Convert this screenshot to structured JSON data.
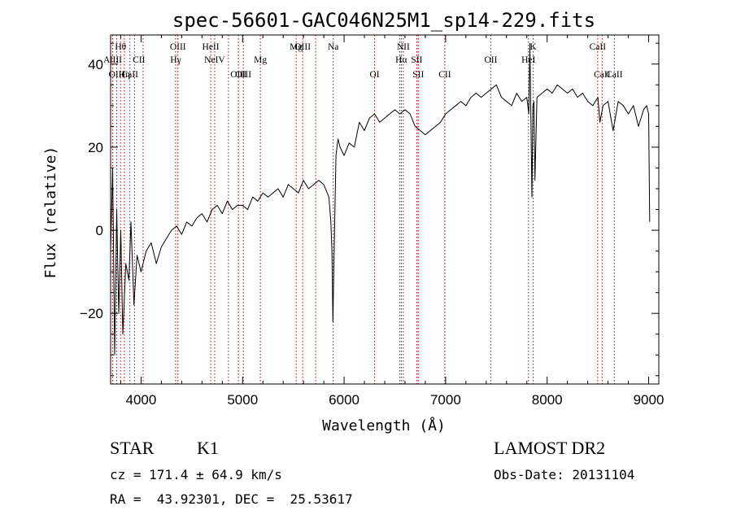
{
  "chart_data": {
    "type": "line",
    "title": "spec-56601-GAC046N25M1_sp14-229.fits",
    "xlabel": "Wavelength (Å)",
    "ylabel": "Flux (relative)",
    "xlim": [
      3700,
      9100
    ],
    "ylim": [
      -37,
      47
    ],
    "xticks": [
      4000,
      5000,
      6000,
      7000,
      8000,
      9000
    ],
    "yticks": [
      -20,
      0,
      20,
      40
    ],
    "xtick_labels": [
      "4000",
      "5000",
      "6000",
      "7000",
      "8000",
      "9000"
    ],
    "ytick_labels": [
      "−20",
      "0",
      "20",
      "40"
    ],
    "grid": false,
    "series": [
      {
        "x": [
          3700,
          3720,
          3740,
          3760,
          3780,
          3800,
          3820,
          3850,
          3880,
          3900,
          3930,
          3960,
          4000,
          4050,
          4100,
          4150,
          4200,
          4250,
          4300,
          4350,
          4400,
          4450,
          4500,
          4550,
          4600,
          4650,
          4700,
          4750,
          4800,
          4850,
          4900,
          4950,
          5000,
          5050,
          5100,
          5150,
          5200,
          5250,
          5300,
          5350,
          5400,
          5450,
          5500,
          5550,
          5600,
          5650,
          5700,
          5750,
          5800,
          5850,
          5870,
          5880,
          5890,
          5900,
          5910,
          5920,
          5940,
          5960,
          6000,
          6050,
          6100,
          6150,
          6200,
          6250,
          6300,
          6350,
          6400,
          6450,
          6500,
          6550,
          6600,
          6650,
          6700,
          6750,
          6800,
          6850,
          6900,
          6950,
          7000,
          7050,
          7100,
          7150,
          7200,
          7250,
          7300,
          7350,
          7400,
          7450,
          7500,
          7550,
          7600,
          7650,
          7700,
          7750,
          7800,
          7820,
          7830,
          7850,
          7860,
          7870,
          7880,
          7900,
          7950,
          8000,
          8050,
          8100,
          8150,
          8200,
          8250,
          8300,
          8350,
          8400,
          8450,
          8500,
          8520,
          8550,
          8600,
          8650,
          8700,
          8750,
          8800,
          8850,
          8900,
          8950,
          8980,
          9000,
          9010
        ],
        "y": [
          -5,
          15,
          -30,
          5,
          -20,
          0,
          -25,
          -8,
          -12,
          2,
          -18,
          -6,
          -10,
          -5,
          -3,
          -8,
          -4,
          -2,
          0,
          1,
          -1,
          2,
          1,
          3,
          4,
          2,
          5,
          6,
          4,
          7,
          5,
          6,
          6,
          5,
          8,
          7,
          9,
          8,
          9,
          10,
          8,
          11,
          10,
          9,
          12,
          10,
          11,
          12,
          11,
          8,
          2,
          -5,
          -22,
          -8,
          5,
          18,
          22,
          20,
          18,
          21,
          20,
          26,
          24,
          27,
          28,
          26,
          27,
          28,
          29,
          28,
          29,
          28,
          25,
          24,
          23,
          24,
          25,
          26,
          28,
          29,
          30,
          31,
          30,
          32,
          33,
          32,
          33,
          34,
          35,
          32,
          31,
          30,
          33,
          31,
          32,
          28,
          45,
          8,
          30,
          31,
          12,
          32,
          33,
          34,
          33,
          35,
          34,
          33,
          34,
          32,
          33,
          31,
          30,
          32,
          26,
          30,
          31,
          24,
          31,
          30,
          28,
          30,
          25,
          29,
          30,
          28,
          2
        ]
      }
    ],
    "line_markers": [
      {
        "label": "Hθ",
        "x": 3798,
        "row": 0
      },
      {
        "label": "AlIII",
        "x": 3720,
        "row": 1
      },
      {
        "label": "OIII",
        "x": 3760,
        "row": 2
      },
      {
        "label": "Hη",
        "x": 3835,
        "row": 2
      },
      {
        "label": "CaII",
        "x": 3890,
        "row": 2
      },
      {
        "label": "CII",
        "x": 3979,
        "row": 1
      },
      {
        "label": "OIII",
        "x": 4363,
        "row": 0
      },
      {
        "label": "Hγ",
        "x": 4341,
        "row": 1
      },
      {
        "label": "HeII",
        "x": 4686,
        "row": 0
      },
      {
        "label": "NeIV",
        "x": 4725,
        "row": 1
      },
      {
        "label": "OIII",
        "x": 4959,
        "row": 2
      },
      {
        "label": "OIII",
        "x": 5007,
        "row": 2
      },
      {
        "label": "Mg",
        "x": 5175,
        "row": 1
      },
      {
        "label": "Mg",
        "x": 5528,
        "row": 0
      },
      {
        "label": "OIII",
        "x": 5592,
        "row": 0
      },
      {
        "label": "Na",
        "x": 5893,
        "row": 0
      },
      {
        "label": "OI",
        "x": 6300,
        "row": 2
      },
      {
        "label": "NII",
        "x": 6583,
        "row": 0
      },
      {
        "label": "Hα",
        "x": 6563,
        "row": 1
      },
      {
        "label": "SII",
        "x": 6716,
        "row": 1
      },
      {
        "label": "SII",
        "x": 6731,
        "row": 2
      },
      {
        "label": "CII",
        "x": 6992,
        "row": 2
      },
      {
        "label": "OII",
        "x": 7445,
        "row": 1
      },
      {
        "label": "HeI",
        "x": 7816,
        "row": 1
      },
      {
        "label": "K",
        "x": 7862,
        "row": 0
      },
      {
        "label": "CaII",
        "x": 8498,
        "row": 0
      },
      {
        "label": "CaII",
        "x": 8542,
        "row": 2
      },
      {
        "label": "CaII",
        "x": 8662,
        "row": 2
      }
    ],
    "marker_lines_x": [
      3720,
      3760,
      3798,
      3835,
      3890,
      3935,
      4020,
      4340,
      4363,
      4686,
      4725,
      4861,
      4959,
      5007,
      5175,
      5528,
      5592,
      5720,
      5893,
      6300,
      6548,
      6563,
      6583,
      6716,
      6731,
      6992,
      7445,
      7816,
      7862,
      8498,
      8542,
      8662
    ]
  },
  "footer": {
    "object_type": "STAR",
    "subclass": "K1",
    "survey": "LAMOST DR2",
    "cz": "cz = 171.4 ± 64.9 km/s",
    "obs_date": "Obs-Date: 20131104",
    "coords": "RA =  43.92301, DEC =  25.53617"
  }
}
